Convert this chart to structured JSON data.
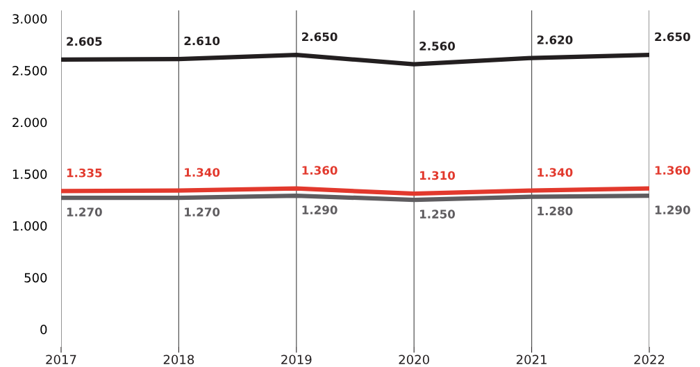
{
  "chart_data": {
    "type": "line",
    "categories": [
      "2017",
      "2018",
      "2019",
      "2020",
      "2021",
      "2022"
    ],
    "series": [
      {
        "color": "#231f20",
        "values": [
          2605,
          2610,
          2650,
          2560,
          2620,
          2650
        ],
        "value_labels": [
          "2.605",
          "2.610",
          "2.650",
          "2.560",
          "2.620",
          "2.650"
        ]
      },
      {
        "color": "#e2392d",
        "values": [
          1335,
          1340,
          1360,
          1310,
          1340,
          1360
        ],
        "value_labels": [
          "1.335",
          "1.340",
          "1.360",
          "1.310",
          "1.340",
          "1.360"
        ]
      },
      {
        "color": "#5f5d60",
        "values": [
          1270,
          1270,
          1290,
          1250,
          1280,
          1290
        ],
        "value_labels": [
          "1.270",
          "1.270",
          "1.290",
          "1.250",
          "1.280",
          "1.290"
        ]
      }
    ],
    "ylim": [
      -170,
      3080
    ],
    "yticks": [
      {
        "value": 0,
        "label": "0"
      },
      {
        "value": 500,
        "label": "500"
      },
      {
        "value": 1000,
        "label": "1.000"
      },
      {
        "value": 1500,
        "label": "1.500"
      },
      {
        "value": 2000,
        "label": "2.000"
      },
      {
        "value": 2500,
        "label": "2.500"
      },
      {
        "value": 3000,
        "label": "3.000"
      }
    ],
    "grid": "x",
    "legend": false,
    "marker": "none",
    "line_style": "solid"
  }
}
